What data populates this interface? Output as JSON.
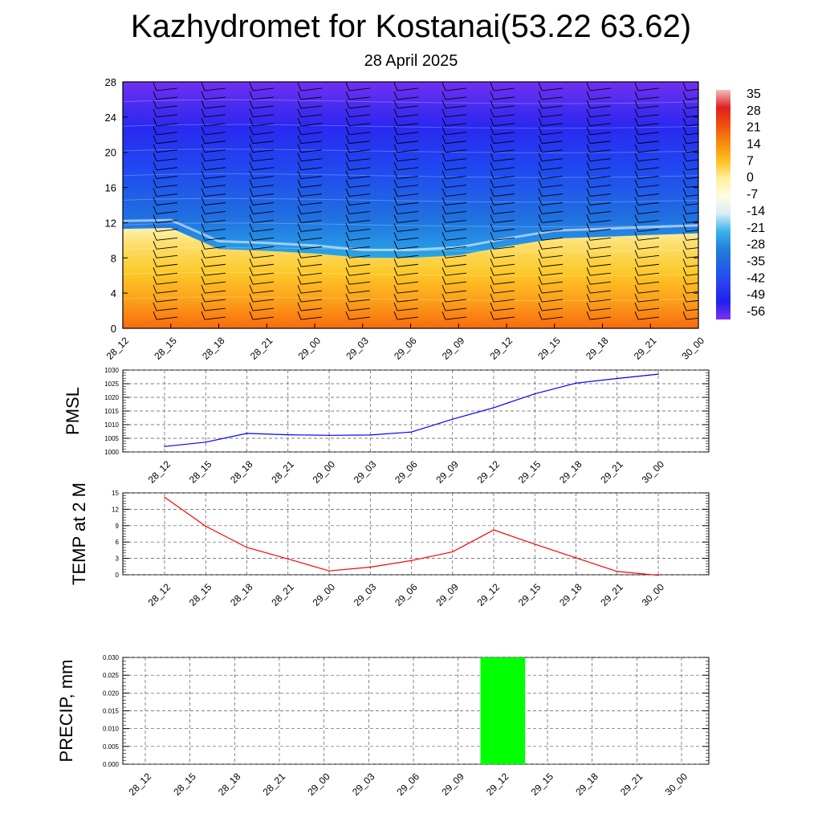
{
  "title": "Kazhydromet for Kostanai(53.22 63.62)",
  "subtitle": "28 April 2025",
  "time_labels": [
    "28_12",
    "28_15",
    "28_18",
    "28_21",
    "29_00",
    "29_03",
    "29_06",
    "29_09",
    "29_12",
    "29_15",
    "29_18",
    "29_21",
    "30_00"
  ],
  "chart_data": [
    {
      "type": "heatmap",
      "description_hint": "",
      "ylim": [
        0,
        28
      ],
      "y_ticks": [
        "0",
        "4",
        "8",
        "12",
        "16",
        "20",
        "24",
        "28"
      ],
      "x": [
        "28_12",
        "28_15",
        "28_18",
        "28_21",
        "29_00",
        "29_03",
        "29_06",
        "29_09",
        "29_12",
        "29_15",
        "29_18",
        "29_21",
        "30_00"
      ],
      "freezing_level_height": [
        11.3,
        11.4,
        9.0,
        8.8,
        8.5,
        8.0,
        8.0,
        8.3,
        9.3,
        10.2,
        10.4,
        10.6,
        10.8
      ],
      "colorbar": {
        "labels": [
          "35",
          "28",
          "21",
          "14",
          "7",
          "0",
          "-7",
          "-14",
          "-21",
          "-28",
          "-35",
          "-42",
          "-49",
          "-56"
        ],
        "colors": [
          "#f4bcbc",
          "#e02020",
          "#f05010",
          "#f88a10",
          "#fcc020",
          "#fff0a0",
          "#fffbe0",
          "#d8eef8",
          "#3cb4e8",
          "#2080d8",
          "#2060e8",
          "#2840f0",
          "#2020f0",
          "#8030f0"
        ]
      }
    },
    {
      "type": "line",
      "ylabel": "PMSL",
      "x": [
        "28_12",
        "28_15",
        "28_18",
        "28_21",
        "29_00",
        "29_03",
        "29_06",
        "29_09",
        "29_12",
        "29_15",
        "29_18",
        "29_21",
        "30_00"
      ],
      "values": [
        1002.0,
        1003.6,
        1006.8,
        1006.3,
        1006.1,
        1006.2,
        1007.3,
        1012.0,
        1016.2,
        1021.3,
        1025.2,
        1026.9,
        1028.5
      ],
      "ylim": [
        1000,
        1030
      ],
      "y_ticks": [
        "1000",
        "1005",
        "1010",
        "1015",
        "1020",
        "1025",
        "1030"
      ],
      "color": "#0000ff"
    },
    {
      "type": "line",
      "ylabel": "TEMP at 2 M",
      "x": [
        "28_12",
        "28_15",
        "28_18",
        "28_21",
        "29_00",
        "29_03",
        "29_06",
        "29_09",
        "29_12",
        "29_15",
        "29_18",
        "29_21",
        "30_00"
      ],
      "values": [
        14.2,
        8.9,
        5.0,
        2.9,
        0.7,
        1.4,
        2.6,
        4.2,
        8.2,
        5.6,
        3.1,
        0.6,
        -0.1
      ],
      "ylim": [
        0,
        15
      ],
      "y_ticks": [
        "0",
        "3",
        "6",
        "9",
        "12",
        "15"
      ],
      "color": "#ff0000"
    },
    {
      "type": "bar",
      "ylabel": "PRECIP, mm",
      "x": [
        "28_12",
        "28_15",
        "28_18",
        "28_21",
        "29_00",
        "29_03",
        "29_06",
        "29_09",
        "29_12",
        "29_15",
        "29_18",
        "29_21",
        "30_00"
      ],
      "values": [
        0,
        0,
        0,
        0,
        0,
        0,
        0,
        0,
        0.03,
        0,
        0,
        0,
        0
      ],
      "ylim": [
        0,
        0.03
      ],
      "y_ticks": [
        "0.000",
        "0.005",
        "0.010",
        "0.015",
        "0.020",
        "0.025",
        "0.030"
      ],
      "color": "#00ff00"
    }
  ]
}
